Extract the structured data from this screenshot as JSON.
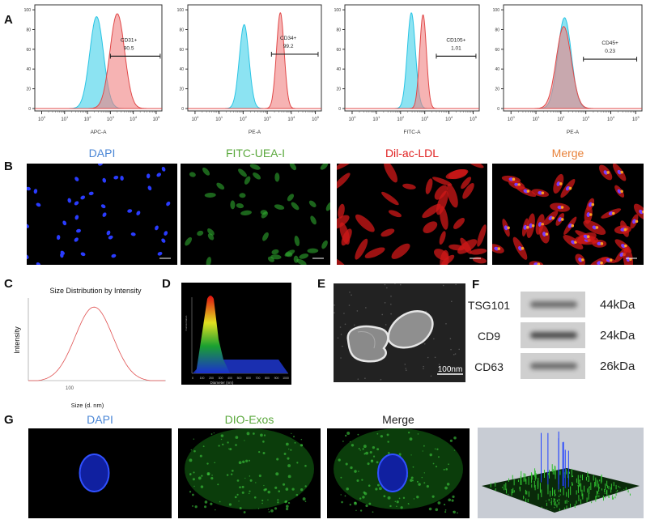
{
  "panels": {
    "A": "A",
    "B": "B",
    "C": "C",
    "D": "D",
    "E": "E",
    "F": "F",
    "G": "G"
  },
  "panel_b": {
    "titles": [
      {
        "text": "DAPI",
        "color": "#4a86d6"
      },
      {
        "text": "FITC-UEA-I",
        "color": "#5aa83c"
      },
      {
        "text": "Dil-ac-LDL",
        "color": "#e02020"
      },
      {
        "text": "Merge",
        "color": "#e8823a"
      }
    ]
  },
  "panel_e": {
    "scale_bar": "100nm"
  },
  "panel_f": {
    "rows": [
      {
        "protein": "TSG101",
        "size": "44kDa"
      },
      {
        "protein": "CD9",
        "size": "24kDa"
      },
      {
        "protein": "CD63",
        "size": "26kDa"
      }
    ]
  },
  "panel_g": {
    "titles": [
      {
        "text": "DAPI",
        "color": "#4a86d6"
      },
      {
        "text": "DIO-Exos",
        "color": "#5aa83c"
      },
      {
        "text": "Merge",
        "color": "#222222"
      }
    ]
  },
  "colors": {
    "control": "#3fd0ea",
    "stained": "#f08080",
    "overlap": "#6f8fa6"
  },
  "chart_data": [
    {
      "type": "area",
      "xscale": "log",
      "xlabel": "APC-A",
      "ylim": [
        0,
        100
      ],
      "yticks": [
        0,
        20,
        40,
        60,
        80,
        100
      ],
      "xticks": [
        "10^0",
        "10^1",
        "10^2",
        "10^3",
        "10^4",
        "10^5"
      ],
      "gate": {
        "label": "CD31+",
        "value": "90.5",
        "range": [
          1000,
          150000
        ]
      },
      "series": [
        {
          "role": "control",
          "peak": 250,
          "height": 93,
          "spread": 0.3
        },
        {
          "role": "stained",
          "peak": 2000,
          "height": 96,
          "spread": 0.32
        }
      ]
    },
    {
      "type": "area",
      "xscale": "log",
      "xlabel": "PE-A",
      "ylim": [
        0,
        100
      ],
      "yticks": [
        0,
        20,
        40,
        60,
        80,
        100
      ],
      "xticks": [
        "10^0",
        "10^1",
        "10^2",
        "10^3",
        "10^4",
        "10^5"
      ],
      "gate": {
        "label": "CD34+",
        "value": "99.2",
        "range": [
          1500,
          130000
        ]
      },
      "series": [
        {
          "role": "control",
          "peak": 110,
          "height": 85,
          "spread": 0.2
        },
        {
          "role": "stained",
          "peak": 3500,
          "height": 97,
          "spread": 0.16
        }
      ]
    },
    {
      "type": "area",
      "xscale": "log",
      "xlabel": "FITC-A",
      "ylim": [
        0,
        100
      ],
      "yticks": [
        0,
        20,
        40,
        60,
        80,
        100
      ],
      "xticks": [
        "10^0",
        "10^1",
        "10^2",
        "10^3",
        "10^4",
        "10^5"
      ],
      "gate": {
        "label": "CD105+",
        "value": "1.01",
        "range": [
          3000,
          130000
        ]
      },
      "series": [
        {
          "role": "control",
          "peak": 280,
          "height": 97,
          "spread": 0.17
        },
        {
          "role": "stained",
          "peak": 850,
          "height": 95,
          "spread": 0.14
        }
      ]
    },
    {
      "type": "area",
      "xscale": "log",
      "xlabel": "PE-A",
      "ylim": [
        0,
        100
      ],
      "yticks": [
        0,
        20,
        40,
        60,
        80,
        100
      ],
      "xticks": [
        "10^0",
        "10^1",
        "10^2",
        "10^3",
        "10^4",
        "10^5"
      ],
      "gate": {
        "label": "CD45+",
        "value": "0.23",
        "range": [
          800,
          110000
        ]
      },
      "series": [
        {
          "role": "control",
          "peak": 140,
          "height": 92,
          "spread": 0.27
        },
        {
          "role": "stained",
          "peak": 130,
          "height": 83,
          "spread": 0.3
        }
      ]
    },
    {
      "type": "line",
      "title": "Size Distribution by Intensity",
      "xlabel": "Size (d. nm)",
      "ylabel": "Intensity",
      "xscale": "log",
      "xtick": "100",
      "color": "#e05050",
      "series": [
        {
          "peak": 150,
          "height": 9,
          "spread": 0.45
        }
      ],
      "ylim": [
        0,
        10
      ]
    },
    {
      "type": "area",
      "xlabel": "Diameter (nm)",
      "ylabel": "Concentration",
      "xticks": [
        "0",
        "100",
        "200",
        "300",
        "400",
        "500",
        "600",
        "700",
        "800",
        "900",
        "1000"
      ],
      "series": [
        {
          "peak": 120
        }
      ]
    }
  ]
}
